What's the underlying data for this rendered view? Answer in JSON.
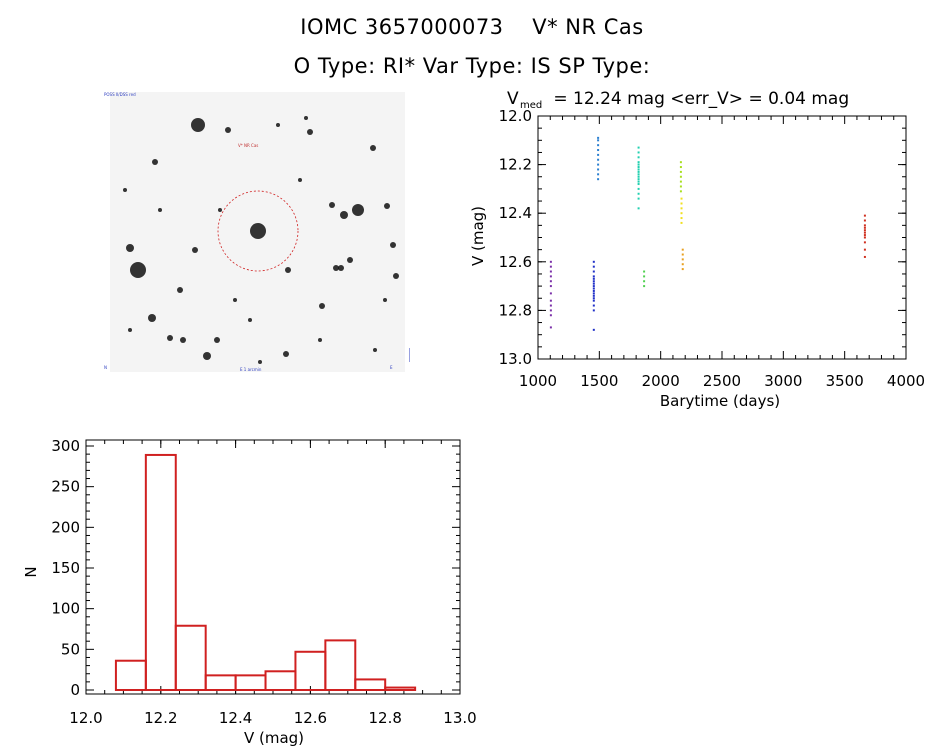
{
  "header": {
    "line1_id": "IOMC 3657000073",
    "line1_name": "V* NR Cas",
    "line2": "O Type: RI*  Var Type: IS  SP Type:"
  },
  "image_panel": {
    "target_label": "V* NR Cas",
    "corner_tl": "POSS II/DSS red",
    "corner_bl": "N",
    "corner_bottom": "E  1 arcmin",
    "corner_br": "E"
  },
  "chart_data": [
    {
      "type": "scatter",
      "title_prefix": "V",
      "title_sub": "med",
      "title_rest": " = 12.24 mag <err_V> = 0.04 mag",
      "xlabel": "Barytime (days)",
      "ylabel": "V (mag)",
      "xlim": [
        1000,
        4000
      ],
      "ylim": [
        13.0,
        12.0
      ],
      "y_inverted": true,
      "xticks": [
        1000,
        1500,
        2000,
        2500,
        3000,
        3500,
        4000
      ],
      "yticks": [
        12.0,
        12.2,
        12.4,
        12.6,
        12.8,
        13.0
      ],
      "groups": [
        {
          "x": 1105,
          "color": "#7a2fa8",
          "points": [
            12.6,
            12.62,
            12.64,
            12.66,
            12.68,
            12.7,
            12.73,
            12.76,
            12.78,
            12.8,
            12.82,
            12.87
          ]
        },
        {
          "x": 1455,
          "color": "#2030c8",
          "points": [
            12.6,
            12.62,
            12.64,
            12.66,
            12.67,
            12.68,
            12.69,
            12.7,
            12.71,
            12.72,
            12.73,
            12.74,
            12.75,
            12.76,
            12.78,
            12.8,
            12.88
          ]
        },
        {
          "x": 1490,
          "color": "#2a7fd0",
          "points": [
            12.09,
            12.1,
            12.12,
            12.14,
            12.16,
            12.18,
            12.2,
            12.22,
            12.24,
            12.26
          ]
        },
        {
          "x": 1820,
          "color": "#20d0b0",
          "points": [
            12.13,
            12.15,
            12.17,
            12.19,
            12.2,
            12.21,
            12.22,
            12.23,
            12.24,
            12.25,
            12.26,
            12.27,
            12.28,
            12.3,
            12.32,
            12.34,
            12.38
          ]
        },
        {
          "x": 1865,
          "color": "#50d050",
          "points": [
            12.64,
            12.66,
            12.68,
            12.7
          ]
        },
        {
          "x": 2165,
          "color": "#a8e020",
          "points": [
            12.19,
            12.21,
            12.23,
            12.25,
            12.27,
            12.29,
            12.31
          ]
        },
        {
          "x": 2170,
          "color": "#f0e020",
          "points": [
            12.34,
            12.36,
            12.38,
            12.4,
            12.42,
            12.44
          ]
        },
        {
          "x": 2180,
          "color": "#e8a020",
          "points": [
            12.55,
            12.57,
            12.59,
            12.61,
            12.63
          ]
        },
        {
          "x": 3665,
          "color": "#d03020",
          "points": [
            12.41,
            12.43,
            12.45,
            12.46,
            12.47,
            12.48,
            12.49,
            12.5,
            12.52,
            12.55,
            12.58
          ]
        }
      ]
    },
    {
      "type": "bar",
      "subtype": "histogram",
      "xlabel": "V (mag)",
      "ylabel": "N",
      "xlim": [
        12.0,
        13.0
      ],
      "ylim": [
        0,
        300
      ],
      "xticks": [
        "12.0",
        "12.2",
        "12.4",
        "12.6",
        "12.8",
        "13.0"
      ],
      "yticks": [
        "0",
        "50",
        "100",
        "150",
        "200",
        "250",
        "300"
      ],
      "bar_color": "#d02020",
      "bins": [
        {
          "start": 12.08,
          "end": 12.16,
          "value": 36
        },
        {
          "start": 12.16,
          "end": 12.24,
          "value": 289
        },
        {
          "start": 12.24,
          "end": 12.32,
          "value": 79
        },
        {
          "start": 12.32,
          "end": 12.4,
          "value": 18
        },
        {
          "start": 12.4,
          "end": 12.48,
          "value": 18
        },
        {
          "start": 12.48,
          "end": 12.56,
          "value": 23
        },
        {
          "start": 12.56,
          "end": 12.64,
          "value": 47
        },
        {
          "start": 12.64,
          "end": 12.72,
          "value": 61
        },
        {
          "start": 12.72,
          "end": 12.8,
          "value": 13
        },
        {
          "start": 12.8,
          "end": 12.88,
          "value": 3
        }
      ]
    }
  ]
}
